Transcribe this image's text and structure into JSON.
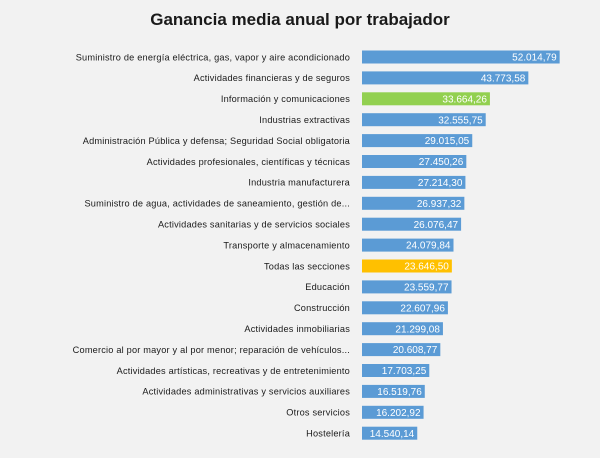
{
  "chart_data": {
    "type": "bar",
    "orientation": "horizontal",
    "title": "Ganancia media anual por trabajador",
    "xlabel": "",
    "ylabel": "",
    "xlim": [
      0,
      60000
    ],
    "grid": false,
    "legend": "none",
    "colors": {
      "default": "#5b9bd5",
      "highlight_info": "#92d050",
      "highlight_total": "#ffc000"
    },
    "categories": [
      "Suministro de energía eléctrica, gas, vapor y aire acondicionado",
      "Actividades financieras y de seguros",
      "Información y comunicaciones",
      "Industrias extractivas",
      "Administración Pública y defensa; Seguridad Social obligatoria",
      "Actividades profesionales, científicas y técnicas",
      "Industria manufacturera",
      "Suministro de agua, actividades de saneamiento, gestión de...",
      "Actividades sanitarias y de servicios sociales",
      "Transporte y almacenamiento",
      "Todas las secciones",
      "Educación",
      "Construcción",
      "Actividades inmobiliarias",
      "Comercio al por mayor y al por menor; reparación de vehículos...",
      "Actividades artísticas, recreativas y de entretenimiento",
      "Actividades administrativas y servicios auxiliares",
      "Otros servicios",
      "Hostelería"
    ],
    "values": [
      52014.79,
      43773.58,
      33664.26,
      32555.75,
      29015.05,
      27450.26,
      27214.3,
      26937.32,
      26076.47,
      24079.84,
      23646.5,
      23559.77,
      22607.96,
      21299.08,
      20608.77,
      17703.25,
      16519.76,
      16202.92,
      14540.14
    ],
    "value_labels": [
      "52.014,79",
      "43.773,58",
      "33.664,26",
      "32.555,75",
      "29.015,05",
      "27.450,26",
      "27.214,30",
      "26.937,32",
      "26.076,47",
      "24.079,84",
      "23.646,50",
      "23.559,77",
      "22.607,96",
      "21.299,08",
      "20.608,77",
      "17.703,25",
      "16.519,76",
      "16.202,92",
      "14.540,14"
    ],
    "bar_colors": [
      "#5b9bd5",
      "#5b9bd5",
      "#92d050",
      "#5b9bd5",
      "#5b9bd5",
      "#5b9bd5",
      "#5b9bd5",
      "#5b9bd5",
      "#5b9bd5",
      "#5b9bd5",
      "#ffc000",
      "#5b9bd5",
      "#5b9bd5",
      "#5b9bd5",
      "#5b9bd5",
      "#5b9bd5",
      "#5b9bd5",
      "#5b9bd5",
      "#5b9bd5"
    ]
  }
}
